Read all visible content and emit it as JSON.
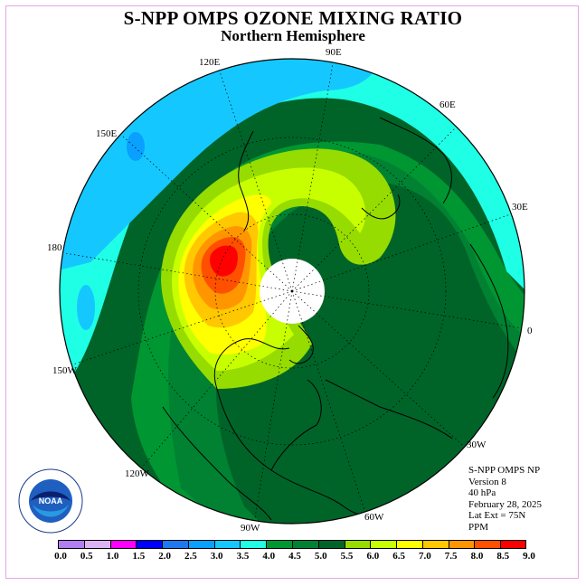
{
  "title": "S-NPP OMPS OZONE MIXING RATIO",
  "subtitle": "Northern Hemisphere",
  "longitude_labels": [
    "90E",
    "60E",
    "30E",
    "0",
    "30W",
    "60W",
    "90W",
    "120W",
    "150W",
    "180",
    "150E",
    "120E"
  ],
  "info": {
    "line1": "S-NPP OMPS NP",
    "line2": "Version 8",
    "line3": "40 hPa",
    "line4": "February 28, 2025",
    "line5": "Lat Ext = 75N",
    "line6": "PPM"
  },
  "colorbar": {
    "ticks": [
      "0.0",
      "0.5",
      "1.0",
      "1.5",
      "2.0",
      "2.5",
      "3.0",
      "3.5",
      "4.0",
      "4.5",
      "5.0",
      "5.5",
      "6.0",
      "6.5",
      "7.0",
      "7.5",
      "8.0",
      "8.5",
      "9.0"
    ],
    "colors": [
      "#b27ff0",
      "#dcb4f4",
      "#ff00ff",
      "#0000ff",
      "#1e78f0",
      "#0aa0ff",
      "#14c8ff",
      "#1effe6",
      "#009632",
      "#008232",
      "#006428",
      "#96dc00",
      "#c8ff00",
      "#ffff00",
      "#ffc800",
      "#ff9600",
      "#ff5000",
      "#ff0000",
      "#8c5a3c"
    ]
  },
  "logo_text": "NOAA"
}
